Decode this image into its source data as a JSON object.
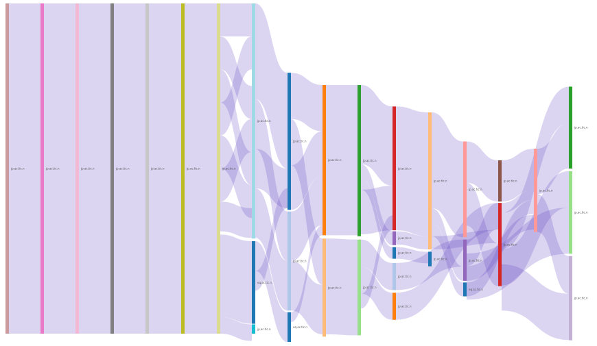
{
  "diagram": {
    "type": "sankey",
    "link_color": "#5a3fc0",
    "nodes": [
      {
        "id": "n0",
        "column": 0,
        "start": 0.0,
        "size": 1.0,
        "color": "#cd9b9b",
        "label": "jp.ac.tic.n"
      },
      {
        "id": "n1",
        "column": 1,
        "start": 0.0,
        "size": 1.0,
        "color": "#e87ac8",
        "label": "jp.ac.tic.n"
      },
      {
        "id": "n2",
        "column": 2,
        "start": 0.0,
        "size": 1.0,
        "color": "#f3b8d4",
        "label": "jp.ac.tic.n"
      },
      {
        "id": "n3",
        "column": 3,
        "start": 0.0,
        "size": 1.0,
        "color": "#808080",
        "label": "jp.ac.tic.n"
      },
      {
        "id": "n4",
        "column": 4,
        "start": 0.0,
        "size": 1.0,
        "color": "#c7c7c7",
        "label": "jp.ac.tic.n"
      },
      {
        "id": "n5",
        "column": 5,
        "start": 0.0,
        "size": 1.0,
        "color": "#bcbd22",
        "label": "jp.ac.tic.n"
      },
      {
        "id": "n6",
        "column": 6,
        "start": 0.0,
        "size": 1.0,
        "color": "#dbdb8d",
        "label": "jp.ac.tic.n"
      },
      {
        "id": "n7",
        "column": 7,
        "start": 0.0,
        "size": 0.712,
        "color": "#9edae5",
        "label": "jp.ac.tic.n"
      },
      {
        "id": "n8",
        "column": 7,
        "start": 0.72,
        "size": 0.25,
        "color": "#1f77b4",
        "label": "eq.ac.tic.n"
      },
      {
        "id": "n9",
        "column": 7,
        "start": 0.972,
        "size": 0.028,
        "color": "#17becf",
        "label": "jp.ac.tic.n"
      },
      {
        "id": "n10",
        "column": 8,
        "start": 0.21,
        "size": 0.415,
        "color": "#1f77b4",
        "label": "jp.ac.tic.n"
      },
      {
        "id": "n11",
        "column": 8,
        "start": 0.63,
        "size": 0.3,
        "color": "#aec7e8",
        "label": "jp.ac.tic.n"
      },
      {
        "id": "n12",
        "column": 8,
        "start": 0.935,
        "size": 0.09,
        "color": "#1f77b4",
        "label": "eq.ac.tic.n"
      },
      {
        "id": "n13",
        "column": 9,
        "start": 0.247,
        "size": 0.455,
        "color": "#ff7f0e",
        "label": "jp.ac.tic.n"
      },
      {
        "id": "n14",
        "column": 9,
        "start": 0.712,
        "size": 0.297,
        "color": "#ffbb78",
        "label": "jp.ac.tic.n"
      },
      {
        "id": "n15",
        "column": 10,
        "start": 0.247,
        "size": 0.458,
        "color": "#2ca02c",
        "label": "jp.ac.tic.n"
      },
      {
        "id": "n16",
        "column": 10,
        "start": 0.715,
        "size": 0.29,
        "color": "#98df8a",
        "label": "jp.ac.tic.n"
      },
      {
        "id": "n17",
        "column": 11,
        "start": 0.312,
        "size": 0.375,
        "color": "#d62728",
        "label": "jp.ac.tic.n"
      },
      {
        "id": "n18",
        "column": 11,
        "start": 0.69,
        "size": 0.042,
        "color": "#9467bd",
        "label": "jp.ac.tic.n"
      },
      {
        "id": "n19",
        "column": 11,
        "start": 0.738,
        "size": 0.035,
        "color": "#1f77b4",
        "label": "jp.ac.tic.n"
      },
      {
        "id": "n20",
        "column": 11,
        "start": 0.786,
        "size": 0.082,
        "color": "#aec7e8",
        "label": "jp.ac.tic.n"
      },
      {
        "id": "n21",
        "column": 11,
        "start": 0.876,
        "size": 0.082,
        "color": "#ff7f0e",
        "label": "jp.ac.tic.n"
      },
      {
        "id": "n22",
        "column": 12,
        "start": 0.33,
        "size": 0.415,
        "color": "#ffbb78",
        "label": "jp.ac.tic.n"
      },
      {
        "id": "n23",
        "column": 12,
        "start": 0.752,
        "size": 0.044,
        "color": "#1f77b4",
        "label": "jp.ac.tic.n"
      },
      {
        "id": "n24",
        "column": 13,
        "start": 0.418,
        "size": 0.29,
        "color": "#ff9896",
        "label": "jp.ac.tic.n"
      },
      {
        "id": "n25",
        "column": 13,
        "start": 0.715,
        "size": 0.125,
        "color": "#9467bd",
        "label": "jp.ac.tic.n"
      },
      {
        "id": "n26",
        "column": 13,
        "start": 0.845,
        "size": 0.042,
        "color": "#1f77b4",
        "label": "eq.ac.tic.n"
      },
      {
        "id": "n27",
        "column": 14,
        "start": 0.475,
        "size": 0.125,
        "color": "#8c564b",
        "label": "jp.ac.tic.n"
      },
      {
        "id": "n28",
        "column": 14,
        "start": 0.604,
        "size": 0.252,
        "color": "#d62728",
        "label": "jp.ac.tic.n"
      },
      {
        "id": "n29",
        "column": 15,
        "start": 0.44,
        "size": 0.252,
        "color": "#ff9896",
        "label": "jp.ac.tic.n"
      },
      {
        "id": "n30",
        "column": 16,
        "start": 0.252,
        "size": 0.248,
        "color": "#2ca02c",
        "label": "jp.ac.tic.n"
      },
      {
        "id": "n31",
        "column": 16,
        "start": 0.508,
        "size": 0.25,
        "color": "#98df8a",
        "label": "jp.ac.tic.n"
      },
      {
        "id": "n32",
        "column": 16,
        "start": 0.765,
        "size": 0.255,
        "color": "#c5b0d5",
        "label": "jp.ac.tic.n"
      }
    ],
    "links": [
      {
        "source": "n0",
        "target": "n1",
        "s_start": 0.0,
        "t_start": 0.0,
        "size": 1.0
      },
      {
        "source": "n1",
        "target": "n2",
        "s_start": 0.0,
        "t_start": 0.0,
        "size": 1.0
      },
      {
        "source": "n2",
        "target": "n3",
        "s_start": 0.0,
        "t_start": 0.0,
        "size": 1.0
      },
      {
        "source": "n3",
        "target": "n4",
        "s_start": 0.0,
        "t_start": 0.0,
        "size": 1.0
      },
      {
        "source": "n4",
        "target": "n5",
        "s_start": 0.0,
        "t_start": 0.0,
        "size": 1.0
      },
      {
        "source": "n5",
        "target": "n6",
        "s_start": 0.0,
        "t_start": 0.0,
        "size": 1.0
      },
      {
        "source": "n6",
        "target": "n7",
        "s_start": 0.0,
        "t_start": 0.0,
        "size": 0.1
      },
      {
        "source": "n6",
        "target": "n7",
        "s_start": 0.1,
        "t_start": 0.25,
        "size": 0.1
      },
      {
        "source": "n6",
        "target": "n7",
        "s_start": 0.2,
        "t_start": 0.45,
        "size": 0.1
      },
      {
        "source": "n6",
        "target": "n7",
        "s_start": 0.3,
        "t_start": 0.1,
        "size": 0.1
      },
      {
        "source": "n6",
        "target": "n7",
        "s_start": 0.4,
        "t_start": 0.55,
        "size": 0.1
      },
      {
        "source": "n6",
        "target": "n7",
        "s_start": 0.5,
        "t_start": 0.35,
        "size": 0.1
      },
      {
        "source": "n6",
        "target": "n7",
        "s_start": 0.6,
        "t_start": 0.62,
        "size": 0.09
      },
      {
        "source": "n6",
        "target": "n8",
        "s_start": 0.7,
        "t_start": 0.72,
        "size": 0.12
      },
      {
        "source": "n6",
        "target": "n8",
        "s_start": 0.82,
        "t_start": 0.84,
        "size": 0.13
      },
      {
        "source": "n6",
        "target": "n9",
        "s_start": 0.95,
        "t_start": 0.972,
        "size": 0.05
      },
      {
        "source": "n7",
        "target": "n10",
        "s_start": 0.0,
        "t_start": 0.21,
        "size": 0.15
      },
      {
        "source": "n7",
        "target": "n10",
        "s_start": 0.15,
        "t_start": 0.36,
        "size": 0.14
      },
      {
        "source": "n7",
        "target": "n11",
        "s_start": 0.29,
        "t_start": 0.63,
        "size": 0.15
      },
      {
        "source": "n7",
        "target": "n10",
        "s_start": 0.44,
        "t_start": 0.5,
        "size": 0.12
      },
      {
        "source": "n7",
        "target": "n11",
        "s_start": 0.56,
        "t_start": 0.78,
        "size": 0.15
      },
      {
        "source": "n8",
        "target": "n12",
        "s_start": 0.72,
        "t_start": 0.935,
        "size": 0.09
      },
      {
        "source": "n8",
        "target": "n10",
        "s_start": 0.81,
        "t_start": 0.56,
        "size": 0.06
      },
      {
        "source": "n10",
        "target": "n13",
        "s_start": 0.21,
        "t_start": 0.247,
        "size": 0.14
      },
      {
        "source": "n10",
        "target": "n14",
        "s_start": 0.35,
        "t_start": 0.712,
        "size": 0.14
      },
      {
        "source": "n10",
        "target": "n13",
        "s_start": 0.49,
        "t_start": 0.387,
        "size": 0.135
      },
      {
        "source": "n11",
        "target": "n13",
        "s_start": 0.63,
        "t_start": 0.522,
        "size": 0.15
      },
      {
        "source": "n11",
        "target": "n14",
        "s_start": 0.78,
        "t_start": 0.852,
        "size": 0.15
      },
      {
        "source": "n12",
        "target": "n13",
        "s_start": 0.935,
        "t_start": 0.672,
        "size": 0.03
      },
      {
        "source": "n13",
        "target": "n15",
        "s_start": 0.247,
        "t_start": 0.247,
        "size": 0.455
      },
      {
        "source": "n14",
        "target": "n16",
        "s_start": 0.712,
        "t_start": 0.715,
        "size": 0.29
      },
      {
        "source": "n15",
        "target": "n17",
        "s_start": 0.247,
        "t_start": 0.312,
        "size": 0.12
      },
      {
        "source": "n15",
        "target": "n17",
        "s_start": 0.367,
        "t_start": 0.432,
        "size": 0.12
      },
      {
        "source": "n15",
        "target": "n18",
        "s_start": 0.487,
        "t_start": 0.69,
        "size": 0.042
      },
      {
        "source": "n15",
        "target": "n19",
        "s_start": 0.529,
        "t_start": 0.738,
        "size": 0.035
      },
      {
        "source": "n15",
        "target": "n17",
        "s_start": 0.564,
        "t_start": 0.552,
        "size": 0.135
      },
      {
        "source": "n16",
        "target": "n20",
        "s_start": 0.715,
        "t_start": 0.786,
        "size": 0.082
      },
      {
        "source": "n16",
        "target": "n21",
        "s_start": 0.797,
        "t_start": 0.876,
        "size": 0.082
      },
      {
        "source": "n16",
        "target": "n17",
        "s_start": 0.879,
        "t_start": 0.642,
        "size": 0.045
      },
      {
        "source": "n17",
        "target": "n22",
        "s_start": 0.312,
        "t_start": 0.33,
        "size": 0.13
      },
      {
        "source": "n17",
        "target": "n22",
        "s_start": 0.442,
        "t_start": 0.46,
        "size": 0.13
      },
      {
        "source": "n17",
        "target": "n22",
        "s_start": 0.572,
        "t_start": 0.59,
        "size": 0.115
      },
      {
        "source": "n18",
        "target": "n22",
        "s_start": 0.69,
        "t_start": 0.705,
        "size": 0.04
      },
      {
        "source": "n19",
        "target": "n23",
        "s_start": 0.738,
        "t_start": 0.752,
        "size": 0.035
      },
      {
        "source": "n20",
        "target": "n25",
        "s_start": 0.786,
        "t_start": 0.715,
        "size": 0.082
      },
      {
        "source": "n21",
        "target": "n28",
        "s_start": 0.876,
        "t_start": 0.604,
        "size": 0.082
      },
      {
        "source": "n22",
        "target": "n24",
        "s_start": 0.33,
        "t_start": 0.418,
        "size": 0.145
      },
      {
        "source": "n22",
        "target": "n24",
        "s_start": 0.475,
        "t_start": 0.563,
        "size": 0.145
      },
      {
        "source": "n22",
        "target": "n25",
        "s_start": 0.62,
        "t_start": 0.797,
        "size": 0.043
      },
      {
        "source": "n22",
        "target": "n26",
        "s_start": 0.663,
        "t_start": 0.845,
        "size": 0.042
      },
      {
        "source": "n22",
        "target": "n28",
        "s_start": 0.705,
        "t_start": 0.686,
        "size": 0.04
      },
      {
        "source": "n24",
        "target": "n27",
        "s_start": 0.418,
        "t_start": 0.475,
        "size": 0.125
      },
      {
        "source": "n24",
        "target": "n28",
        "s_start": 0.543,
        "t_start": 0.726,
        "size": 0.13
      },
      {
        "source": "n25",
        "target": "n28",
        "s_start": 0.715,
        "t_start": 0.604,
        "size": 0.08
      },
      {
        "source": "n25",
        "target": "n29",
        "s_start": 0.795,
        "t_start": 0.64,
        "size": 0.045
      },
      {
        "source": "n26",
        "target": "n29",
        "s_start": 0.845,
        "t_start": 0.595,
        "size": 0.042
      },
      {
        "source": "n27",
        "target": "n29",
        "s_start": 0.475,
        "t_start": 0.44,
        "size": 0.125
      },
      {
        "source": "n28",
        "target": "n29",
        "s_start": 0.604,
        "t_start": 0.565,
        "size": 0.03
      },
      {
        "source": "n28",
        "target": "n30",
        "s_start": 0.634,
        "t_start": 0.252,
        "size": 0.11
      },
      {
        "source": "n28",
        "target": "n31",
        "s_start": 0.744,
        "t_start": 0.508,
        "size": 0.11
      },
      {
        "source": "n29",
        "target": "n30",
        "s_start": 0.44,
        "t_start": 0.362,
        "size": 0.138
      },
      {
        "source": "n29",
        "target": "n32",
        "s_start": 0.578,
        "t_start": 0.765,
        "size": 0.114
      },
      {
        "source": "n25",
        "target": "n31",
        "s_start": 0.757,
        "t_start": 0.618,
        "size": 0.14
      },
      {
        "source": "n28",
        "target": "n32",
        "s_start": 0.79,
        "t_start": 0.879,
        "size": 0.14
      }
    ]
  }
}
